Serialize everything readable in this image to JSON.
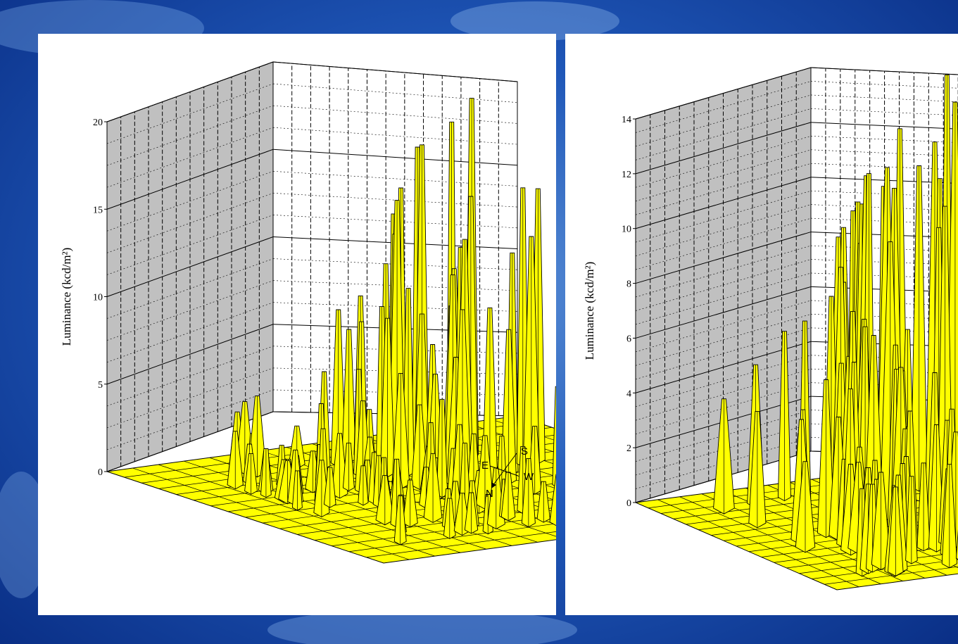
{
  "chart_data": [
    {
      "type": "surface",
      "title": "",
      "ylabel": "Luminance (kcd/m²)",
      "ylim": [
        0,
        20
      ],
      "yticks": [
        "0",
        "5",
        "10",
        "15",
        "20"
      ],
      "grid": true,
      "surface_color": "#ffff00",
      "peak_value": 20,
      "compass": {
        "top": "S",
        "left": "E",
        "right": "W",
        "bottom": "N"
      }
    },
    {
      "type": "surface",
      "title": "",
      "ylabel": "Luminance (kcd/m²)",
      "ylim": [
        0,
        14
      ],
      "yticks": [
        "0",
        "2",
        "4",
        "6",
        "8",
        "10",
        "12",
        "14"
      ],
      "grid": true,
      "surface_color": "#ffff00",
      "peak_value": 14
    }
  ]
}
